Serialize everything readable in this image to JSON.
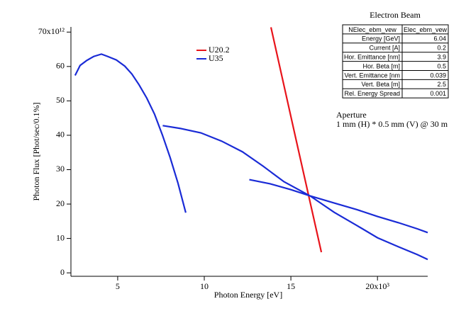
{
  "chart_data": {
    "type": "line",
    "xlabel": "Photon Energy [eV]",
    "ylabel": "Photon Flux [Phot/sec/0.1%]",
    "xlim": [
      2.3,
      22.9
    ],
    "ylim": [
      -1,
      71.5
    ],
    "xticks": [
      5,
      10,
      15,
      {
        "value": 20,
        "label": "20x10³"
      }
    ],
    "yticks": [
      0,
      10,
      20,
      30,
      40,
      50,
      60,
      {
        "value": 70,
        "label": "70x10¹²"
      }
    ],
    "legend": "top-center",
    "series": [
      {
        "name": "U20.2",
        "color": "#e8141b",
        "x": [
          13.85,
          15.3,
          16.76
        ],
        "values": [
          71.4,
          38.7,
          6.0
        ]
      },
      {
        "name": "U35",
        "color": "#1a2bd6",
        "x": [
          2.54,
          2.83,
          3.2,
          3.61,
          4.06,
          4.43,
          4.92,
          5.41,
          5.82,
          6.23,
          6.68,
          7.13,
          7.58,
          8.03,
          8.48,
          8.93,
          null,
          7.6,
          8.6,
          9.8,
          11.0,
          12.2,
          13.4,
          14.6,
          16.1,
          17.5,
          18.8,
          20.0,
          21.2,
          22.3,
          22.9,
          null,
          12.6,
          13.8,
          15.0,
          16.1,
          17.5,
          18.8,
          20.0,
          21.2,
          22.3,
          22.9
        ],
        "values": [
          57.4,
          60.3,
          61.7,
          62.9,
          63.6,
          62.9,
          61.9,
          60.1,
          57.8,
          54.7,
          50.8,
          46.1,
          40.1,
          33.5,
          26.1,
          17.5,
          null,
          42.8,
          42.0,
          40.7,
          38.3,
          35.2,
          31.0,
          26.5,
          22.4,
          17.6,
          13.8,
          10.2,
          7.6,
          5.3,
          3.9,
          null,
          27.1,
          25.9,
          24.2,
          22.4,
          20.3,
          18.4,
          16.4,
          14.6,
          12.8,
          11.7
        ]
      }
    ],
    "annotations": [
      "Aperture",
      "1 mm (H) * 0.5 mm (V) @ 30 m"
    ],
    "table": {
      "title": "Electron Beam",
      "header": [
        "NElec_ebm_vew",
        "Elec_ebm_vew"
      ],
      "rows": [
        [
          "Energy [GeV]",
          "6.04"
        ],
        [
          "Current [A]",
          "0.2"
        ],
        [
          "Hor. Emittance [nm]",
          "3.9"
        ],
        [
          "Hor. Beta [m]",
          "0.5"
        ],
        [
          "Vert. Emittance [nm",
          "0.039"
        ],
        [
          "Vert. Beta [m]",
          "2.5"
        ],
        [
          "Rel. Energy Spread",
          "0.001"
        ]
      ]
    }
  }
}
